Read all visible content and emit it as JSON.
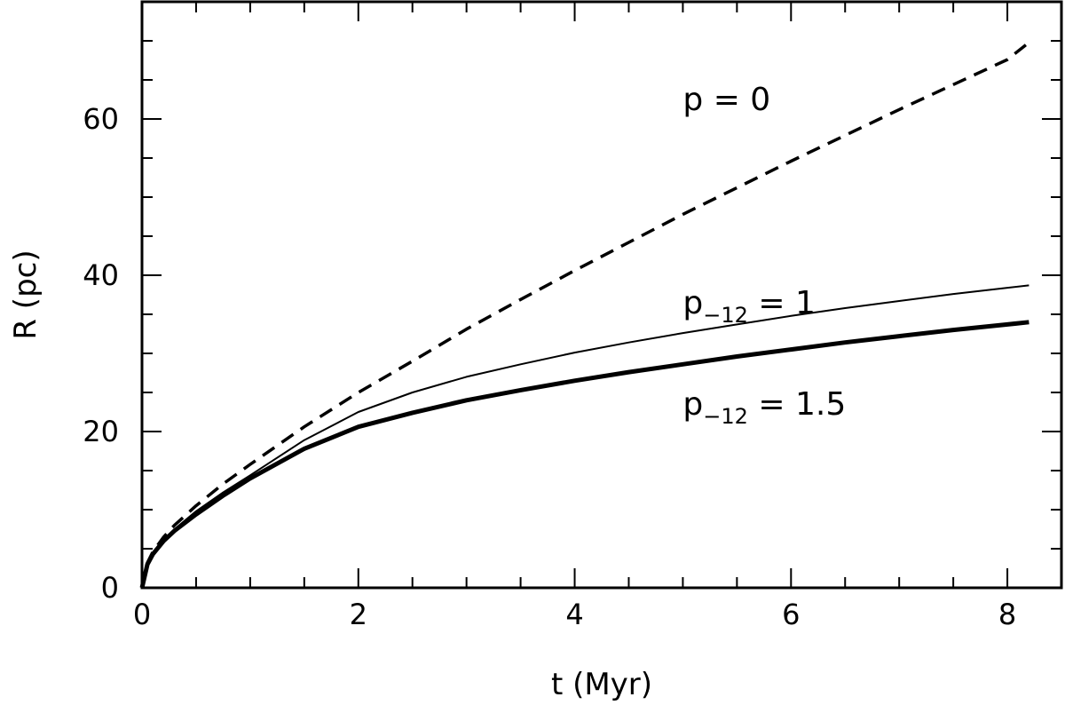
{
  "chart_data": {
    "type": "line",
    "title": "",
    "xlabel": "t (Myr)",
    "ylabel": "R (pc)",
    "xlim": [
      0,
      8.5
    ],
    "ylim": [
      0,
      75
    ],
    "x_ticks": [
      0,
      2,
      4,
      6,
      8
    ],
    "y_ticks": [
      0,
      20,
      40,
      60
    ],
    "x_tick_labels": [
      "0",
      "2",
      "4",
      "6",
      "8"
    ],
    "y_tick_labels": [
      "0",
      "20",
      "40",
      "60"
    ],
    "x_minor_step": 0.5,
    "y_minor_step": 5,
    "grid": false,
    "legend": "none",
    "series": [
      {
        "style": "dashed",
        "weight": "medium",
        "color": "#000000",
        "x": [
          0,
          0.05,
          0.1,
          0.2,
          0.3,
          0.5,
          0.75,
          1.0,
          1.5,
          2.0,
          2.5,
          3.0,
          3.5,
          4.0,
          4.5,
          5.0,
          5.5,
          6.0,
          6.5,
          7.0,
          7.5,
          8.0,
          8.2
        ],
        "y": [
          0,
          3.2,
          4.6,
          6.5,
          8.0,
          10.5,
          13.3,
          15.8,
          20.6,
          25.0,
          29.0,
          33.1,
          36.9,
          40.6,
          44.2,
          47.8,
          51.2,
          54.6,
          57.9,
          61.2,
          64.4,
          67.6,
          69.8
        ]
      },
      {
        "style": "solid",
        "weight": "thin",
        "color": "#000000",
        "x": [
          0,
          0.05,
          0.1,
          0.2,
          0.3,
          0.5,
          0.75,
          1.0,
          1.5,
          2.0,
          2.5,
          3.0,
          3.5,
          4.0,
          4.5,
          5.0,
          5.5,
          6.0,
          6.5,
          7.0,
          7.5,
          8.0,
          8.2
        ],
        "y": [
          0,
          3.0,
          4.3,
          6.1,
          7.5,
          9.8,
          12.2,
          14.4,
          18.9,
          22.5,
          25.0,
          27.0,
          28.6,
          30.1,
          31.4,
          32.6,
          33.7,
          34.8,
          35.8,
          36.7,
          37.6,
          38.4,
          38.7
        ]
      },
      {
        "style": "solid",
        "weight": "thick",
        "color": "#000000",
        "x": [
          0,
          0.05,
          0.1,
          0.2,
          0.3,
          0.5,
          0.75,
          1.0,
          1.5,
          2.0,
          2.5,
          3.0,
          3.5,
          4.0,
          4.5,
          5.0,
          5.5,
          6.0,
          6.5,
          7.0,
          7.5,
          8.0,
          8.2
        ],
        "y": [
          0,
          3.0,
          4.3,
          6.0,
          7.3,
          9.4,
          11.8,
          14.0,
          17.8,
          20.6,
          22.4,
          24.0,
          25.3,
          26.5,
          27.6,
          28.6,
          29.6,
          30.5,
          31.4,
          32.2,
          33.0,
          33.7,
          34.0
        ]
      }
    ],
    "annotations": [
      {
        "text": "p = 0",
        "sub": "",
        "rest": "",
        "anchor": [
          5.0,
          62.5
        ]
      },
      {
        "text": "p",
        "sub": "−12",
        "rest": " = 1",
        "anchor": [
          5.0,
          36.5
        ]
      },
      {
        "text": "p",
        "sub": "−12",
        "rest": " = 1.5",
        "anchor": [
          5.0,
          23.5
        ]
      }
    ]
  }
}
